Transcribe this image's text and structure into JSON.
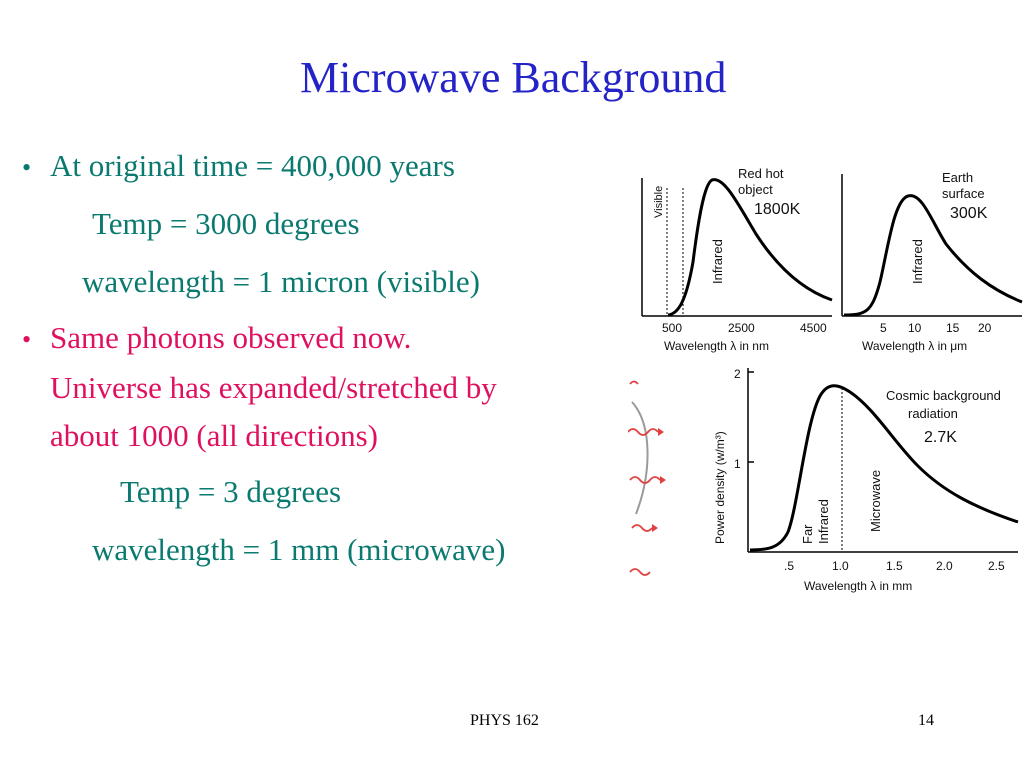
{
  "colors": {
    "title": "#2323c8",
    "teal": "#0a7a70",
    "pink": "#e01060",
    "curve": "#000000",
    "wave": "#e04040"
  },
  "slide": {
    "title": "Microwave Background",
    "lines": [
      "At original time = 400,000 years",
      "Temp = 3000 degrees",
      "wavelength = 1 micron (visible)",
      "Same photons observed now.",
      "Universe has expanded/stretched by",
      "about 1000 (all directions)",
      "Temp = 3 degrees",
      "wavelength = 1 mm (microwave)"
    ],
    "bullet_glyph": "•"
  },
  "figure": {
    "panel1": {
      "label_visible": "Visible",
      "label_infrared": "Infrared",
      "caption": [
        "Red hot",
        "object",
        "1800K"
      ],
      "ticks": [
        "500",
        "2500",
        "4500"
      ],
      "xlabel": "Wavelength λ in nm"
    },
    "panel2": {
      "label_infrared": "Infrared",
      "caption": [
        "Earth",
        "surface",
        "300K"
      ],
      "ticks": [
        "5",
        "10",
        "15",
        "20"
      ],
      "xlabel": "Wavelength λ in μm"
    },
    "panel3": {
      "ylabel": "Power density (w/m³)",
      "yticks": [
        "2",
        "1"
      ],
      "caption": [
        "Cosmic background",
        "radiation",
        "2.7K"
      ],
      "label_far": "Far",
      "label_infrared": "Infrared",
      "label_microwave": "Microwave",
      "ticks": [
        ".5",
        "1.0",
        "1.5",
        "2.0",
        "2.5"
      ],
      "xlabel": "Wavelength λ in mm"
    }
  },
  "footer": {
    "course": "PHYS 162",
    "page": "14"
  }
}
